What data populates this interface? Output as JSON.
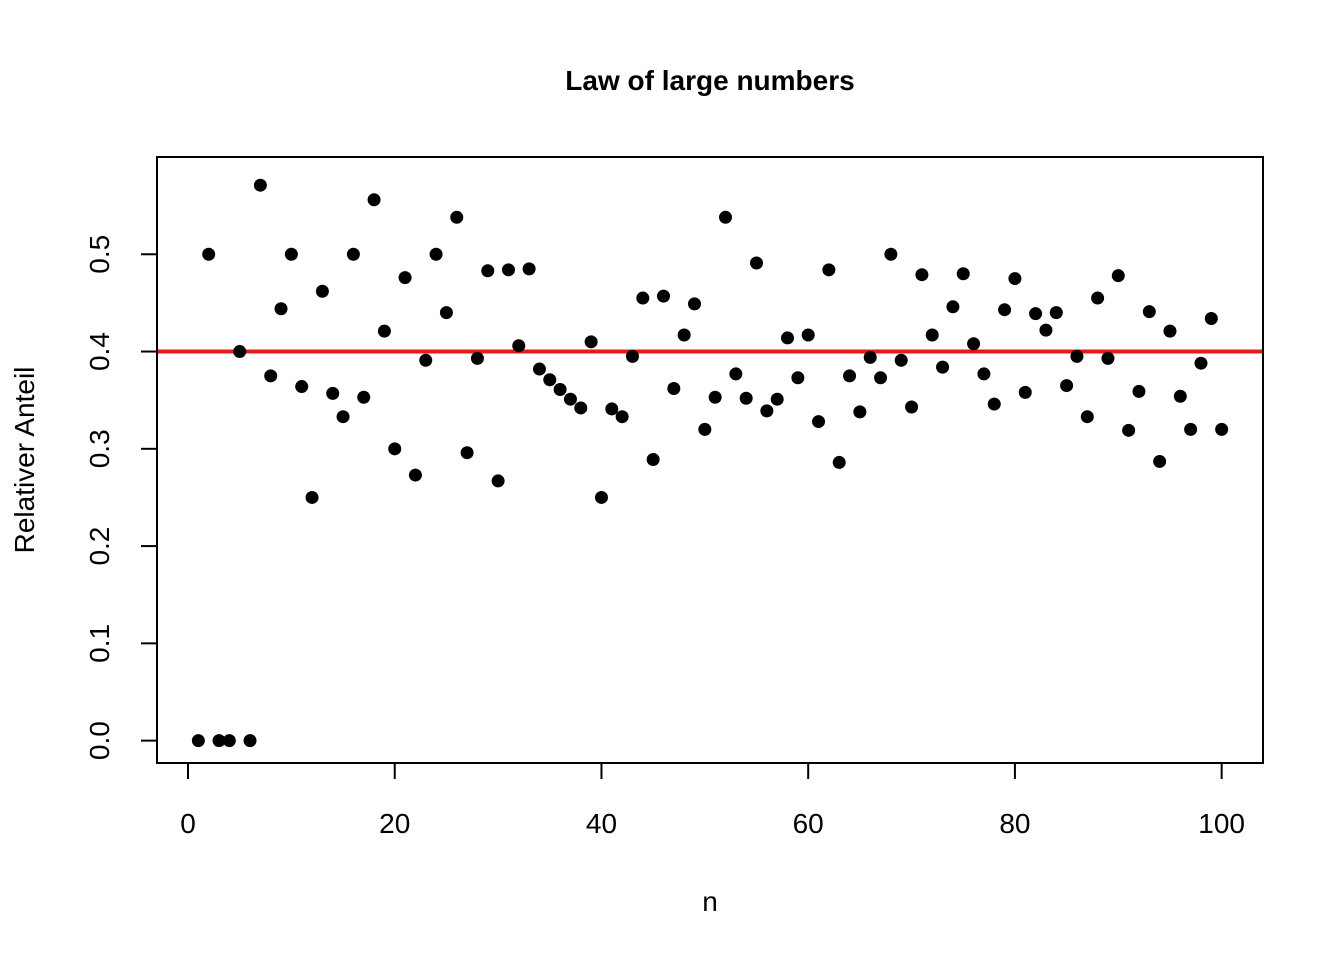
{
  "chart_data": {
    "type": "scatter",
    "title": "Law of large numbers",
    "xlabel": "n",
    "ylabel": "Relativer Anteil",
    "xlim": [
      -3,
      104
    ],
    "ylim": [
      -0.023,
      0.6
    ],
    "xticks": [
      0,
      20,
      40,
      60,
      80,
      100
    ],
    "yticks": [
      0.0,
      0.1,
      0.2,
      0.3,
      0.4,
      0.5
    ],
    "xtick_labels": [
      "0",
      "20",
      "40",
      "60",
      "80",
      "100"
    ],
    "ytick_labels": [
      "0.0",
      "0.1",
      "0.2",
      "0.3",
      "0.4",
      "0.5"
    ],
    "reference_line": {
      "y": 0.4,
      "color": "#e41a1c"
    },
    "point_color": "#000000",
    "grid": false,
    "x": [
      1,
      2,
      3,
      4,
      5,
      6,
      7,
      8,
      9,
      10,
      11,
      12,
      13,
      14,
      15,
      16,
      17,
      18,
      19,
      20,
      21,
      22,
      23,
      24,
      25,
      26,
      27,
      28,
      29,
      30,
      31,
      32,
      33,
      34,
      35,
      36,
      37,
      38,
      39,
      40,
      41,
      42,
      43,
      44,
      45,
      46,
      47,
      48,
      49,
      50,
      51,
      52,
      53,
      54,
      55,
      56,
      57,
      58,
      59,
      60,
      61,
      62,
      63,
      64,
      65,
      66,
      67,
      68,
      69,
      70,
      71,
      72,
      73,
      74,
      75,
      76,
      77,
      78,
      79,
      80,
      81,
      82,
      83,
      84,
      85,
      86,
      87,
      88,
      89,
      90,
      91,
      92,
      93,
      94,
      95,
      96,
      97,
      98,
      99,
      100
    ],
    "y": [
      0.0,
      0.5,
      0.0,
      0.0,
      0.4,
      0.0,
      0.571,
      0.375,
      0.444,
      0.5,
      0.364,
      0.25,
      0.462,
      0.357,
      0.333,
      0.5,
      0.353,
      0.556,
      0.421,
      0.3,
      0.476,
      0.273,
      0.391,
      0.5,
      0.44,
      0.538,
      0.296,
      0.393,
      0.483,
      0.267,
      0.484,
      0.406,
      0.485,
      0.382,
      0.371,
      0.361,
      0.351,
      0.342,
      0.41,
      0.25,
      0.341,
      0.333,
      0.395,
      0.455,
      0.289,
      0.457,
      0.362,
      0.417,
      0.449,
      0.32,
      0.353,
      0.538,
      0.377,
      0.352,
      0.491,
      0.339,
      0.351,
      0.414,
      0.373,
      0.417,
      0.328,
      0.484,
      0.286,
      0.375,
      0.338,
      0.394,
      0.373,
      0.5,
      0.391,
      0.343,
      0.479,
      0.417,
      0.384,
      0.446,
      0.48,
      0.408,
      0.377,
      0.346,
      0.443,
      0.475,
      0.358,
      0.439,
      0.422,
      0.44,
      0.365,
      0.395,
      0.333,
      0.455,
      0.393,
      0.478,
      0.319,
      0.359,
      0.441,
      0.287,
      0.421,
      0.354,
      0.32,
      0.388,
      0.434,
      0.32
    ]
  }
}
